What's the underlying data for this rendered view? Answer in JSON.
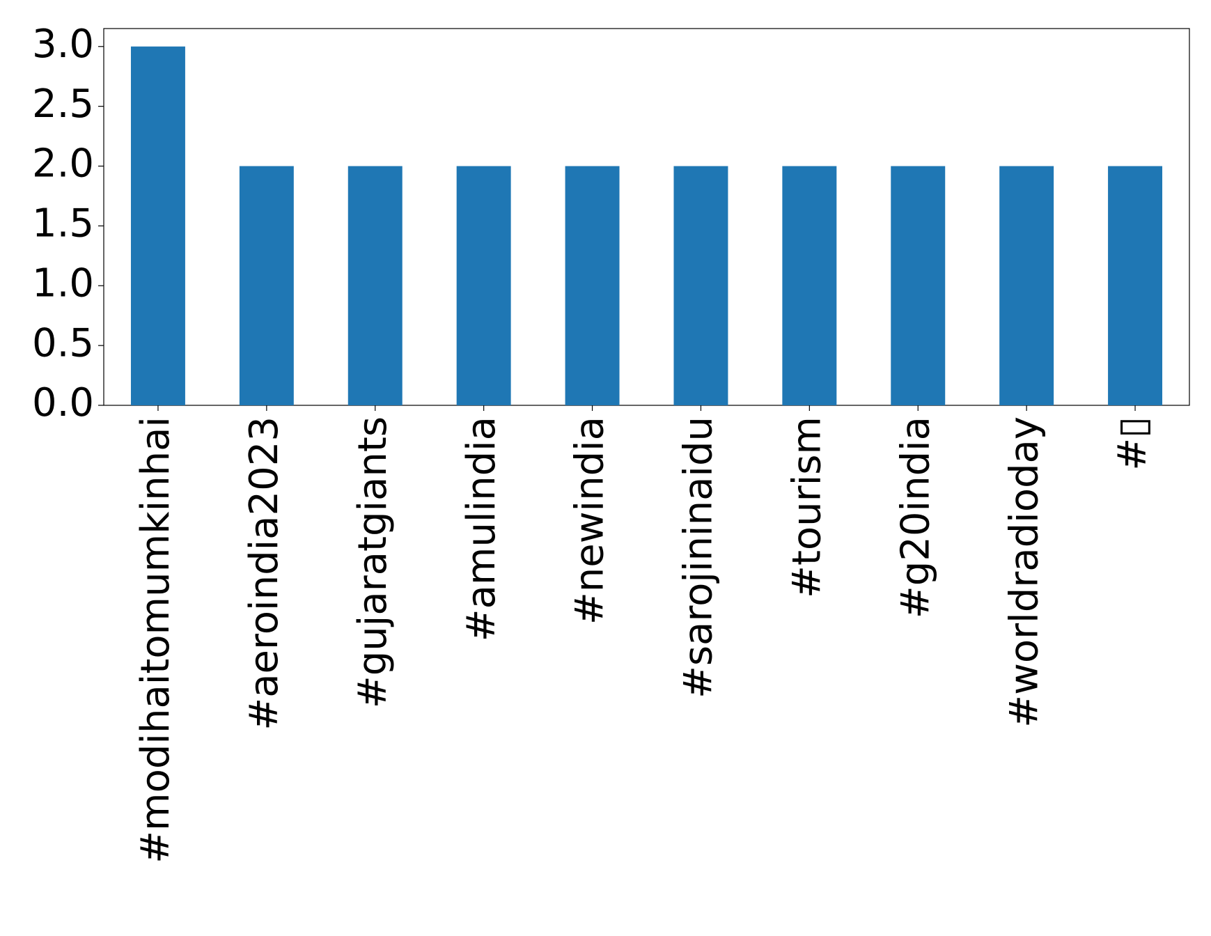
{
  "chart_data": {
    "type": "bar",
    "categories": [
      "#modihaitomumkinhai",
      "#aeroindia2023",
      "#gujaratgiants",
      "#amulindia",
      "#newindia",
      "#sarojininaidu",
      "#tourism",
      "#g20india",
      "#worldradioday",
      "#▯"
    ],
    "values": [
      3,
      2,
      2,
      2,
      2,
      2,
      2,
      2,
      2,
      2
    ],
    "color": "#1f77b4",
    "ylim": [
      0,
      3.15
    ],
    "yticks": [
      {
        "value": 0,
        "label": "0.0"
      },
      {
        "value": 0.5,
        "label": "0.5"
      },
      {
        "value": 1,
        "label": "1.0"
      },
      {
        "value": 1.5,
        "label": "1.5"
      },
      {
        "value": 2,
        "label": "2.0"
      },
      {
        "value": 2.5,
        "label": "2.5"
      },
      {
        "value": 3,
        "label": "3.0"
      }
    ],
    "grid": false
  }
}
